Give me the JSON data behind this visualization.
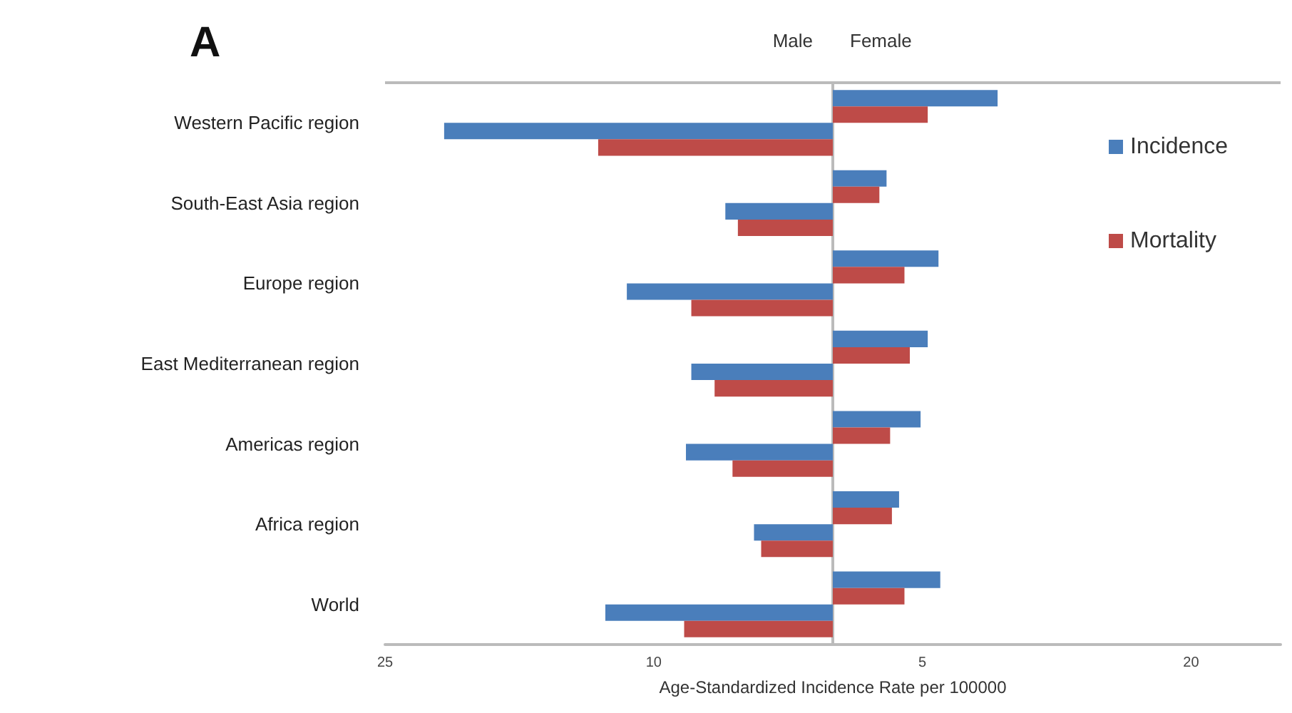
{
  "chart_data": {
    "type": "bar",
    "orientation": "horizontal",
    "title": "A",
    "xlabel": "Age-Standardized Incidence Rate per 100000",
    "annotations": [
      "Male",
      "Female"
    ],
    "categories": [
      "Western Pacific region",
      "South-East Asia region",
      "Europe region",
      "East Mediterranean region",
      "Americas region",
      "Africa region",
      "World"
    ],
    "series": [
      {
        "name": "Incidence",
        "color": "#4a7ebb",
        "values": [
          9.2,
          3.0,
          5.9,
          5.3,
          4.9,
          3.7,
          6.0
        ]
      },
      {
        "name": "Mortality",
        "color": "#be4b48",
        "values": [
          5.3,
          2.6,
          4.0,
          4.3,
          3.2,
          3.3,
          4.0
        ]
      },
      {
        "color": "#4a7ebb",
        "values": [
          -21.7,
          -6.0,
          -11.5,
          -7.9,
          -8.2,
          -4.4,
          -12.7
        ]
      },
      {
        "color": "#be4b48",
        "values": [
          -13.1,
          -5.3,
          -7.9,
          -6.6,
          -5.6,
          -4.0,
          -8.3
        ]
      }
    ],
    "xlim": [
      -25,
      25
    ],
    "xticks": [
      {
        "value": -25,
        "label": "25"
      },
      {
        "value": -10,
        "label": "10"
      },
      {
        "value": 5,
        "label": "5"
      },
      {
        "value": 20,
        "label": "20"
      }
    ],
    "grid": false,
    "legend": "right"
  }
}
